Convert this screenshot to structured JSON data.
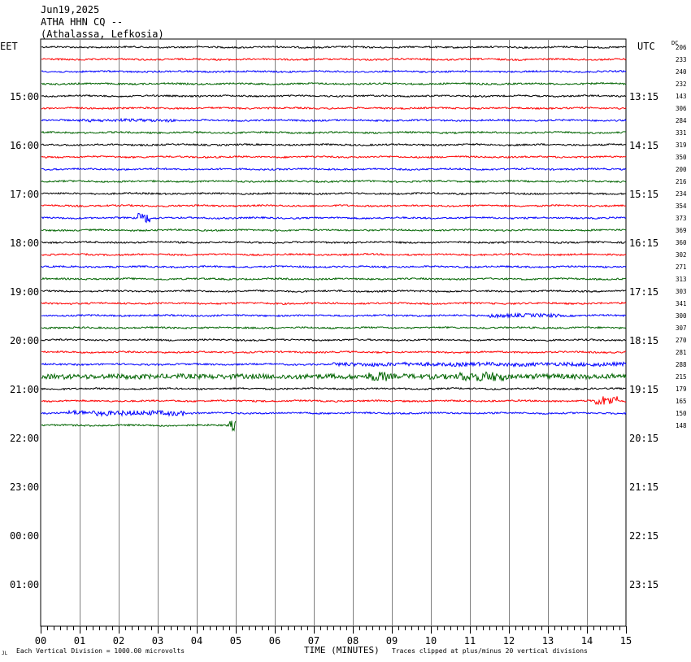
{
  "header": {
    "date": "Jun19,2025",
    "station": "ATHA HHN CQ --",
    "location": "(Athalassa, Lefkosia)"
  },
  "left_tz": "EET",
  "right_tz": "UTC",
  "dc_label": "DC",
  "footer": {
    "corner_mark": "JL",
    "vertical_division": "Each Vertical Division = 1000.00 microvolts",
    "clip_note": "Traces clipped at plus/minus 20 vertical divisions"
  },
  "chart_data": {
    "type": "line",
    "xlabel": "TIME (MINUTES)",
    "x_ticks": [
      "00",
      "01",
      "02",
      "03",
      "04",
      "05",
      "06",
      "07",
      "08",
      "09",
      "10",
      "11",
      "12",
      "13",
      "14",
      "15"
    ],
    "xlim": [
      0,
      15
    ],
    "rows_per_hour": 4,
    "left_hour_labels": [
      "15:00",
      "16:00",
      "17:00",
      "18:00",
      "19:00",
      "20:00",
      "21:00",
      "22:00",
      "23:00",
      "00:00",
      "01:00"
    ],
    "right_hour_labels": [
      "13:15",
      "14:15",
      "15:15",
      "16:15",
      "17:15",
      "18:15",
      "19:15",
      "20:15",
      "21:15",
      "22:15",
      "23:15"
    ],
    "trace_colors": [
      "#000000",
      "#ff0000",
      "#0000ff",
      "#006400"
    ],
    "dc_offsets": [
      206,
      233,
      240,
      232,
      143,
      306,
      284,
      331,
      319,
      350,
      200,
      216,
      234,
      354,
      373,
      369,
      360,
      302,
      271,
      313,
      303,
      341,
      300,
      307,
      270,
      281,
      288,
      215,
      179,
      165,
      150,
      148
    ],
    "trace_end_minutes": 5.0,
    "events": [
      {
        "row": 27,
        "start_min": 0.0,
        "end_min": 15.0,
        "level": "high"
      },
      {
        "row": 27,
        "start_min": 8.4,
        "end_min": 8.9,
        "level": "burst"
      },
      {
        "row": 27,
        "start_min": 10.7,
        "end_min": 11.9,
        "level": "burst"
      },
      {
        "row": 26,
        "start_min": 7.5,
        "end_min": 15.0,
        "level": "moderate"
      },
      {
        "row": 30,
        "start_min": 0.7,
        "end_min": 3.7,
        "level": "high"
      },
      {
        "row": 29,
        "start_min": 14.2,
        "end_min": 14.8,
        "level": "burst"
      },
      {
        "row": 22,
        "start_min": 11.5,
        "end_min": 13.3,
        "level": "moderate"
      },
      {
        "row": 31,
        "start_min": 4.8,
        "end_min": 5.0,
        "level": "burst"
      },
      {
        "row": 14,
        "start_min": 2.5,
        "end_min": 2.8,
        "level": "burst"
      },
      {
        "row": 6,
        "start_min": 1.0,
        "end_min": 3.5,
        "level": "low"
      }
    ]
  }
}
